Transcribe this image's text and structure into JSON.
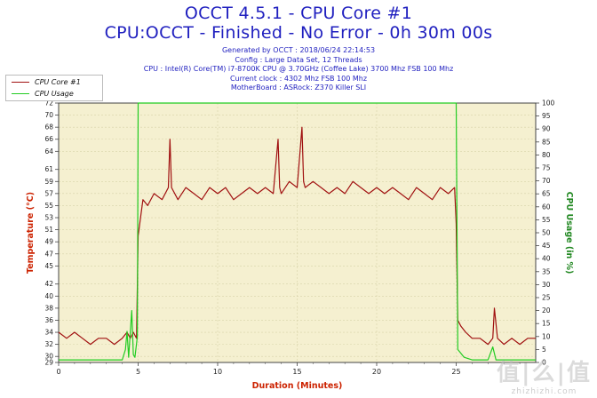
{
  "header": {
    "title_line1": "OCCT 4.5.1 - CPU Core #1",
    "title_line2": "CPU:OCCT - Finished - No Error - 0h 30m 00s",
    "info_lines": [
      "Generated by OCCT : 2018/06/24 22:14:53",
      "Config : Large Data Set, 12 Threads",
      "CPU : Intel(R) Core(TM) i7-8700K CPU @ 3.70GHz (Coffee Lake) 3700 Mhz FSB 100 Mhz",
      "Current clock : 4302 Mhz FSB 100 Mhz",
      "MotherBoard : ASRock: Z370 Killer SLI"
    ]
  },
  "watermark": {
    "text": "值|么|值",
    "url": "zhizhizhi.com"
  },
  "colors": {
    "core": "#a01010",
    "usage": "#22cc22",
    "plot_bg": "#f5f0d0",
    "grid": "#d8d2a8",
    "title": "#1f1fbf",
    "axis_label": "#cc2200",
    "right_axis_label": "#228822"
  },
  "chart_data": {
    "type": "line",
    "xlabel": "Duration (Minutes)",
    "ylabel": "Temperature (°C)",
    "y2label": "CPU Usage (in %)",
    "xlim": [
      0,
      30
    ],
    "ylim": [
      29,
      72
    ],
    "y2lim": [
      0,
      100
    ],
    "x_ticks": [
      0,
      5,
      10,
      15,
      20,
      25
    ],
    "y_ticks": [
      29,
      30,
      32,
      34,
      36,
      38,
      40,
      42,
      45,
      47,
      49,
      51,
      53,
      55,
      57,
      59,
      61,
      64,
      66,
      68,
      70,
      72
    ],
    "y2_ticks": [
      0,
      5,
      10,
      15,
      20,
      25,
      30,
      35,
      40,
      45,
      50,
      55,
      60,
      65,
      70,
      75,
      80,
      85,
      90,
      95,
      100
    ],
    "grid": true,
    "legend_position": "top-left",
    "series": [
      {
        "name": "CPU Core #1",
        "axis": "left",
        "x": [
          0,
          0.5,
          1,
          1.5,
          2,
          2.5,
          3,
          3.5,
          4,
          4.3,
          4.5,
          4.7,
          4.9,
          5.0,
          5.1,
          5.3,
          5.6,
          6.0,
          6.5,
          6.9,
          7.0,
          7.1,
          7.5,
          8,
          8.5,
          9,
          9.5,
          10,
          10.5,
          11,
          11.5,
          12,
          12.5,
          13,
          13.5,
          13.8,
          13.9,
          14,
          14.5,
          15,
          15.3,
          15.4,
          15.5,
          16,
          16.5,
          17,
          17.5,
          18,
          18.5,
          19,
          19.5,
          20,
          20.5,
          21,
          21.5,
          22,
          22.5,
          23,
          23.5,
          24,
          24.5,
          24.9,
          25.0,
          25.1,
          25.3,
          25.6,
          26,
          26.5,
          27,
          27.3,
          27.4,
          27.6,
          28,
          28.5,
          29,
          29.5,
          30
        ],
        "values": [
          34,
          33,
          34,
          33,
          32,
          33,
          33,
          32,
          33,
          34,
          33,
          34,
          33,
          50,
          52,
          56,
          55,
          57,
          56,
          58,
          66,
          58,
          56,
          58,
          57,
          56,
          58,
          57,
          58,
          56,
          57,
          58,
          57,
          58,
          57,
          66,
          58,
          57,
          59,
          58,
          68,
          59,
          58,
          59,
          58,
          57,
          58,
          57,
          59,
          58,
          57,
          58,
          57,
          58,
          57,
          56,
          58,
          57,
          56,
          58,
          57,
          58,
          52,
          36,
          35,
          34,
          33,
          33,
          32,
          33,
          38,
          33,
          32,
          33,
          32,
          33,
          33
        ]
      },
      {
        "name": "CPU Usage",
        "axis": "right",
        "x": [
          0,
          1,
          2,
          3,
          4,
          4.2,
          4.3,
          4.4,
          4.6,
          4.7,
          4.8,
          4.95,
          5.0,
          25.0,
          25.1,
          25.5,
          26,
          27,
          27.3,
          27.5,
          28,
          29,
          30
        ],
        "values": [
          1,
          1,
          1,
          1,
          1,
          5,
          12,
          2,
          20,
          3,
          2,
          10,
          100,
          100,
          5,
          2,
          1,
          1,
          6,
          1,
          1,
          1,
          1
        ]
      }
    ]
  }
}
